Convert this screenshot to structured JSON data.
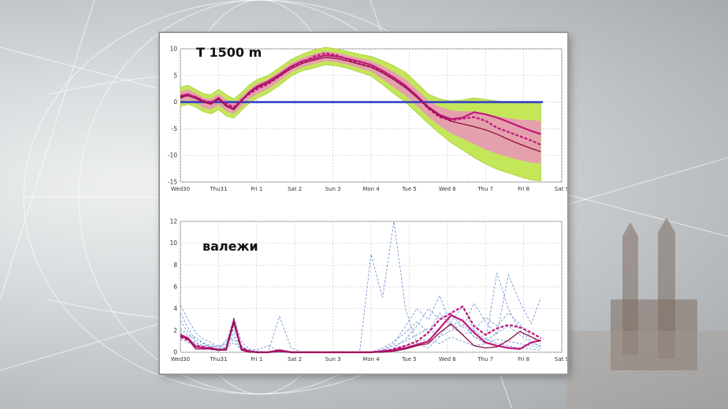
{
  "chart_data": [
    {
      "type": "line",
      "title": "T 1500 m",
      "x_tick_labels": [
        "Wed30",
        "Thu31",
        "Fri 1",
        "Sat 2",
        "Sun 3",
        "Mon 4",
        "Tue 5",
        "Wed 6",
        "Thu 7",
        "Fri 8",
        "Sat 9"
      ],
      "highlight_tick": "Sun 3",
      "highlight_color": "#cc2222",
      "ylim": [
        -15,
        10
      ],
      "yticks": [
        10,
        5,
        0,
        -5,
        -10,
        -15
      ],
      "reference_line": {
        "y": 0,
        "color": "#3340c8"
      },
      "x": [
        0,
        0.2,
        0.4,
        0.6,
        0.8,
        1.0,
        1.2,
        1.4,
        1.6,
        1.8,
        2.0,
        2.3,
        2.6,
        2.9,
        3.2,
        3.5,
        3.8,
        4.1,
        4.4,
        4.7,
        5.0,
        5.3,
        5.6,
        5.9,
        6.2,
        6.5,
        6.8,
        7.1,
        7.4,
        7.7,
        8.0,
        8.3,
        8.6,
        8.9,
        9.2,
        9.45
      ],
      "series": [
        {
          "color": "#c0187a",
          "values": [
            1.2,
            1.5,
            0.9,
            0.2,
            -0.2,
            0.8,
            -0.6,
            -1.2,
            0.3,
            1.8,
            2.9,
            3.9,
            5.2,
            6.7,
            7.7,
            8.2,
            8.8,
            8.6,
            8.1,
            7.6,
            7.0,
            5.9,
            4.6,
            3.1,
            1.2,
            -0.9,
            -2.4,
            -3.2,
            -2.9,
            -1.9,
            -2.3,
            -2.9,
            -3.7,
            -4.6,
            -5.4,
            -6.0
          ]
        },
        {
          "color": "#c0187a",
          "values": [
            0.8,
            1.3,
            1.0,
            0.3,
            0.0,
            0.5,
            -0.3,
            -0.9,
            0.4,
            1.5,
            2.4,
            3.4,
            4.9,
            6.4,
            7.4,
            8.6,
            9.2,
            8.8,
            8.0,
            7.2,
            6.6,
            5.6,
            4.5,
            3.0,
            1.1,
            -1.2,
            -2.8,
            -3.4,
            -3.1,
            -2.8,
            -3.5,
            -4.8,
            -5.6,
            -6.4,
            -7.2,
            -8.0
          ]
        },
        {
          "color": "#8c0f45",
          "values": [
            1.0,
            1.2,
            0.7,
            0.0,
            -0.4,
            0.6,
            -0.8,
            -1.4,
            0.2,
            1.7,
            2.7,
            3.6,
            4.9,
            6.3,
            7.3,
            7.9,
            8.4,
            8.2,
            7.7,
            7.1,
            6.6,
            5.5,
            4.2,
            2.7,
            0.9,
            -1.1,
            -2.6,
            -3.6,
            -4.1,
            -4.6,
            -5.2,
            -6.0,
            -7.0,
            -7.9,
            -8.7,
            -9.3
          ]
        }
      ],
      "ensemble_band": {
        "upper": [
          2.8,
          3.2,
          2.4,
          1.6,
          1.4,
          2.4,
          1.4,
          0.6,
          1.8,
          3.2,
          4.2,
          5.0,
          6.5,
          8.0,
          9.0,
          9.8,
          10.3,
          10.0,
          9.5,
          9.0,
          8.6,
          7.8,
          6.8,
          5.6,
          3.6,
          1.5,
          0.6,
          0.2,
          0.4,
          0.8,
          0.5,
          0.2,
          0.0,
          -0.2,
          -0.1,
          -0.3
        ],
        "lower": [
          -0.8,
          -0.4,
          -0.9,
          -1.8,
          -2.2,
          -1.4,
          -2.6,
          -3.0,
          -1.6,
          -0.2,
          0.7,
          1.7,
          3.2,
          4.9,
          5.9,
          6.4,
          7.0,
          6.8,
          6.3,
          5.6,
          4.9,
          3.3,
          1.6,
          0.0,
          -2.0,
          -4.0,
          -5.9,
          -7.6,
          -9.0,
          -10.4,
          -11.6,
          -12.6,
          -13.3,
          -14.0,
          -14.6,
          -14.8
        ],
        "outer_color": "#c4e659",
        "inner_color": "#ee8fc2"
      }
    },
    {
      "type": "line",
      "title": "валежи",
      "x_tick_labels": [
        "Wed30",
        "Thu31",
        "Fri 1",
        "Sat 2",
        "Sun 3",
        "Mon 4",
        "Tue 5",
        "Wed 6",
        "Thu 7",
        "Fri 8",
        "Sat 9"
      ],
      "highlight_tick": "Sun 3",
      "highlight_color": "#cc2222",
      "ylim": [
        0,
        12
      ],
      "yticks": [
        12,
        10,
        8,
        6,
        4,
        2,
        0
      ],
      "x": [
        0,
        0.2,
        0.4,
        0.6,
        0.8,
        1.0,
        1.2,
        1.4,
        1.6,
        1.8,
        2.0,
        2.3,
        2.6,
        2.9,
        3.2,
        3.5,
        3.8,
        4.1,
        4.4,
        4.7,
        5.0,
        5.3,
        5.6,
        5.9,
        6.2,
        6.5,
        6.8,
        7.1,
        7.4,
        7.7,
        8.0,
        8.3,
        8.6,
        8.9,
        9.2,
        9.45
      ],
      "series": [
        {
          "color": "#c0187a",
          "values": [
            1.6,
            1.3,
            0.5,
            0.4,
            0.4,
            0.2,
            0.3,
            2.9,
            0.3,
            0.1,
            0.0,
            0.0,
            0.2,
            0.0,
            0.0,
            0.0,
            0.0,
            0.0,
            0.0,
            0.0,
            0.0,
            0.1,
            0.2,
            0.4,
            0.7,
            1.0,
            2.2,
            3.4,
            2.9,
            1.8,
            0.9,
            0.6,
            0.4,
            0.3,
            0.9,
            1.1
          ]
        },
        {
          "color": "#c0187a",
          "values": [
            1.4,
            1.1,
            0.6,
            0.5,
            0.3,
            0.2,
            0.3,
            2.7,
            0.4,
            0.1,
            0.0,
            0.0,
            0.1,
            0.0,
            0.0,
            0.0,
            0.0,
            0.0,
            0.0,
            0.0,
            0.0,
            0.1,
            0.3,
            0.6,
            1.0,
            1.8,
            3.0,
            3.6,
            4.2,
            2.4,
            1.6,
            2.2,
            2.5,
            2.3,
            1.8,
            1.3
          ]
        },
        {
          "color": "#8c0f45",
          "values": [
            1.5,
            1.2,
            0.3,
            0.3,
            0.3,
            0.2,
            0.2,
            2.8,
            0.2,
            0.0,
            0.0,
            0.0,
            0.1,
            0.0,
            0.0,
            0.0,
            0.0,
            0.0,
            0.0,
            0.0,
            0.0,
            0.0,
            0.1,
            0.3,
            0.6,
            0.8,
            1.8,
            2.6,
            1.6,
            0.6,
            0.4,
            0.5,
            1.1,
            1.9,
            1.4,
            1.0
          ]
        }
      ],
      "ensemble_color": "#4a78c8",
      "ensemble_members": [
        [
          4.3,
          3.0,
          1.8,
          1.2,
          0.9,
          0.5,
          0.8,
          3.2,
          1.0,
          0.3,
          0.2,
          0.6,
          0.1,
          0.0,
          0.0,
          0.0,
          0.0,
          0.0,
          0.0,
          0.0,
          9.0,
          5.0,
          12.0,
          4.0,
          0.8,
          0.4,
          1.5,
          2.8,
          4.2,
          2.0,
          1.2,
          0.8,
          0.6,
          0.4,
          0.3,
          0.2
        ],
        [
          3.6,
          2.2,
          1.1,
          0.9,
          0.4,
          0.3,
          1.1,
          2.1,
          0.6,
          0.1,
          0.0,
          0.0,
          3.3,
          0.4,
          0.0,
          0.0,
          0.0,
          0.0,
          0.0,
          0.0,
          0.0,
          0.2,
          0.8,
          2.4,
          4.0,
          3.0,
          5.2,
          2.4,
          3.0,
          1.4,
          0.8,
          7.3,
          4.0,
          2.0,
          1.0,
          0.5
        ],
        [
          2.9,
          1.8,
          0.9,
          0.6,
          0.7,
          0.4,
          0.5,
          1.8,
          0.4,
          0.2,
          0.0,
          0.0,
          0.0,
          0.0,
          0.0,
          0.0,
          0.0,
          0.0,
          0.0,
          0.0,
          0.0,
          0.0,
          0.4,
          1.2,
          2.4,
          4.0,
          3.0,
          3.6,
          2.2,
          4.5,
          2.8,
          1.6,
          7.1,
          4.6,
          2.6,
          5.0
        ],
        [
          2.2,
          1.5,
          1.4,
          0.8,
          0.5,
          0.6,
          0.7,
          1.4,
          0.5,
          0.2,
          0.1,
          0.0,
          0.0,
          0.0,
          0.0,
          0.0,
          0.0,
          0.0,
          0.0,
          0.0,
          0.0,
          0.4,
          1.0,
          1.8,
          2.8,
          1.8,
          3.6,
          2.4,
          1.6,
          2.0,
          3.2,
          2.4,
          3.6,
          2.6,
          1.4,
          0.8
        ],
        [
          1.8,
          1.2,
          0.8,
          0.5,
          0.5,
          0.3,
          0.4,
          1.2,
          0.3,
          0.1,
          0.0,
          0.0,
          0.0,
          0.0,
          0.0,
          0.0,
          0.0,
          0.0,
          0.0,
          0.0,
          0.0,
          0.2,
          0.6,
          1.0,
          1.6,
          2.2,
          1.4,
          2.0,
          2.6,
          1.4,
          1.0,
          1.8,
          2.4,
          1.6,
          0.8,
          0.6
        ],
        [
          1.2,
          0.9,
          0.6,
          0.4,
          0.3,
          0.2,
          0.3,
          0.9,
          0.2,
          0.0,
          0.0,
          0.0,
          0.0,
          0.0,
          0.0,
          0.0,
          0.0,
          0.0,
          0.0,
          0.0,
          0.0,
          0.1,
          0.3,
          0.6,
          1.0,
          1.2,
          0.8,
          1.4,
          1.0,
          0.6,
          0.8,
          1.2,
          1.0,
          0.8,
          0.6,
          0.4
        ]
      ]
    }
  ]
}
